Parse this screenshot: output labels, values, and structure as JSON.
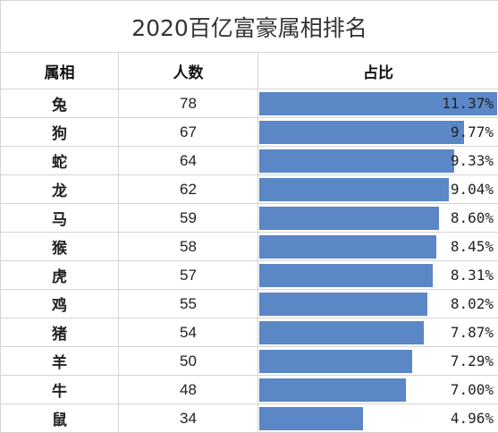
{
  "title": "2020百亿富豪属相排名",
  "headers": {
    "zodiac": "属相",
    "count": "人数",
    "share": "占比"
  },
  "rows": [
    {
      "zodiac": "兔",
      "count": "78",
      "share": "11.37%",
      "value": 11.37
    },
    {
      "zodiac": "狗",
      "count": "67",
      "share": "9.77%",
      "value": 9.77
    },
    {
      "zodiac": "蛇",
      "count": "64",
      "share": "9.33%",
      "value": 9.33
    },
    {
      "zodiac": "龙",
      "count": "62",
      "share": "9.04%",
      "value": 9.04
    },
    {
      "zodiac": "马",
      "count": "59",
      "share": "8.60%",
      "value": 8.6
    },
    {
      "zodiac": "猴",
      "count": "58",
      "share": "8.45%",
      "value": 8.45
    },
    {
      "zodiac": "虎",
      "count": "57",
      "share": "8.31%",
      "value": 8.31
    },
    {
      "zodiac": "鸡",
      "count": "55",
      "share": "8.02%",
      "value": 8.02
    },
    {
      "zodiac": "猪",
      "count": "54",
      "share": "7.87%",
      "value": 7.87
    },
    {
      "zodiac": "羊",
      "count": "50",
      "share": "7.29%",
      "value": 7.29
    },
    {
      "zodiac": "牛",
      "count": "48",
      "share": "7.00%",
      "value": 7.0
    },
    {
      "zodiac": "鼠",
      "count": "34",
      "share": "4.96%",
      "value": 4.96
    }
  ],
  "colors": {
    "bar": "#5b87c6",
    "grid": "#d4d4d4"
  },
  "chart_data": {
    "type": "bar",
    "categories": [
      "兔",
      "狗",
      "蛇",
      "龙",
      "马",
      "猴",
      "虎",
      "鸡",
      "猪",
      "羊",
      "牛",
      "鼠"
    ],
    "values": [
      11.37,
      9.77,
      9.33,
      9.04,
      8.6,
      8.45,
      8.31,
      8.02,
      7.87,
      7.29,
      7.0,
      4.96
    ],
    "title": "",
    "xlabel": "",
    "ylabel": ""
  }
}
